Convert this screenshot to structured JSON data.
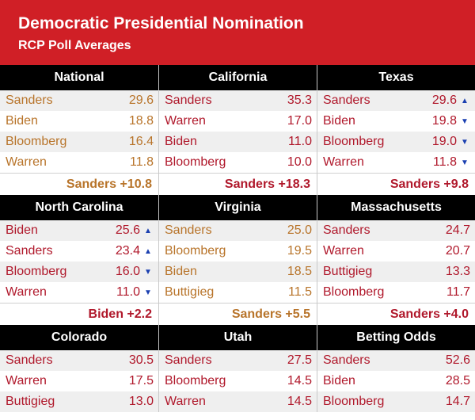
{
  "header": {
    "title": "Democratic Presidential Nomination",
    "subtitle": "RCP Poll Averages"
  },
  "colors": {
    "header_bg": "#d01f26",
    "red_text": "#b0182b",
    "gold_text": "#b8742a",
    "arrow_blue": "#1a3fb0"
  },
  "panels": [
    {
      "title": "National",
      "rows": [
        {
          "name": "Sanders",
          "value": "29.6",
          "color": "gold"
        },
        {
          "name": "Biden",
          "value": "18.8",
          "color": "gold"
        },
        {
          "name": "Bloomberg",
          "value": "16.4",
          "color": "gold"
        },
        {
          "name": "Warren",
          "value": "11.8",
          "color": "gold"
        }
      ],
      "spread": "Sanders +10.8",
      "spread_color": "gold"
    },
    {
      "title": "California",
      "rows": [
        {
          "name": "Sanders",
          "value": "35.3",
          "color": "red"
        },
        {
          "name": "Warren",
          "value": "17.0",
          "color": "red"
        },
        {
          "name": "Biden",
          "value": "11.0",
          "color": "red"
        },
        {
          "name": "Bloomberg",
          "value": "10.0",
          "color": "red"
        }
      ],
      "spread": "Sanders +18.3",
      "spread_color": "red"
    },
    {
      "title": "Texas",
      "rows": [
        {
          "name": "Sanders",
          "value": "29.6",
          "color": "red",
          "arrow": "up"
        },
        {
          "name": "Biden",
          "value": "19.8",
          "color": "red",
          "arrow": "down"
        },
        {
          "name": "Bloomberg",
          "value": "19.0",
          "color": "red",
          "arrow": "down"
        },
        {
          "name": "Warren",
          "value": "11.8",
          "color": "red",
          "arrow": "down"
        }
      ],
      "spread": "Sanders +9.8",
      "spread_color": "red"
    },
    {
      "title": "North Carolina",
      "rows": [
        {
          "name": "Biden",
          "value": "25.6",
          "color": "red",
          "arrow": "up"
        },
        {
          "name": "Sanders",
          "value": "23.4",
          "color": "red",
          "arrow": "up"
        },
        {
          "name": "Bloomberg",
          "value": "16.0",
          "color": "red",
          "arrow": "down"
        },
        {
          "name": "Warren",
          "value": "11.0",
          "color": "red",
          "arrow": "down"
        }
      ],
      "spread": "Biden +2.2",
      "spread_color": "red"
    },
    {
      "title": "Virginia",
      "rows": [
        {
          "name": "Sanders",
          "value": "25.0",
          "color": "gold"
        },
        {
          "name": "Bloomberg",
          "value": "19.5",
          "color": "gold"
        },
        {
          "name": "Biden",
          "value": "18.5",
          "color": "gold"
        },
        {
          "name": "Buttigieg",
          "value": "11.5",
          "color": "gold"
        }
      ],
      "spread": "Sanders +5.5",
      "spread_color": "gold"
    },
    {
      "title": "Massachusetts",
      "rows": [
        {
          "name": "Sanders",
          "value": "24.7",
          "color": "red"
        },
        {
          "name": "Warren",
          "value": "20.7",
          "color": "red"
        },
        {
          "name": "Buttigieg",
          "value": "13.3",
          "color": "red"
        },
        {
          "name": "Bloomberg",
          "value": "11.7",
          "color": "red"
        }
      ],
      "spread": "Sanders +4.0",
      "spread_color": "red"
    },
    {
      "title": "Colorado",
      "rows": [
        {
          "name": "Sanders",
          "value": "30.5",
          "color": "red"
        },
        {
          "name": "Warren",
          "value": "17.5",
          "color": "red"
        },
        {
          "name": "Buttigieg",
          "value": "13.0",
          "color": "red"
        }
      ]
    },
    {
      "title": "Utah",
      "rows": [
        {
          "name": "Sanders",
          "value": "27.5",
          "color": "red"
        },
        {
          "name": "Bloomberg",
          "value": "14.5",
          "color": "red"
        },
        {
          "name": "Warren",
          "value": "14.5",
          "color": "red"
        }
      ]
    },
    {
      "title": "Betting Odds",
      "rows": [
        {
          "name": "Sanders",
          "value": "52.6",
          "color": "red"
        },
        {
          "name": "Biden",
          "value": "28.5",
          "color": "red"
        },
        {
          "name": "Bloomberg",
          "value": "14.7",
          "color": "red"
        }
      ]
    }
  ]
}
